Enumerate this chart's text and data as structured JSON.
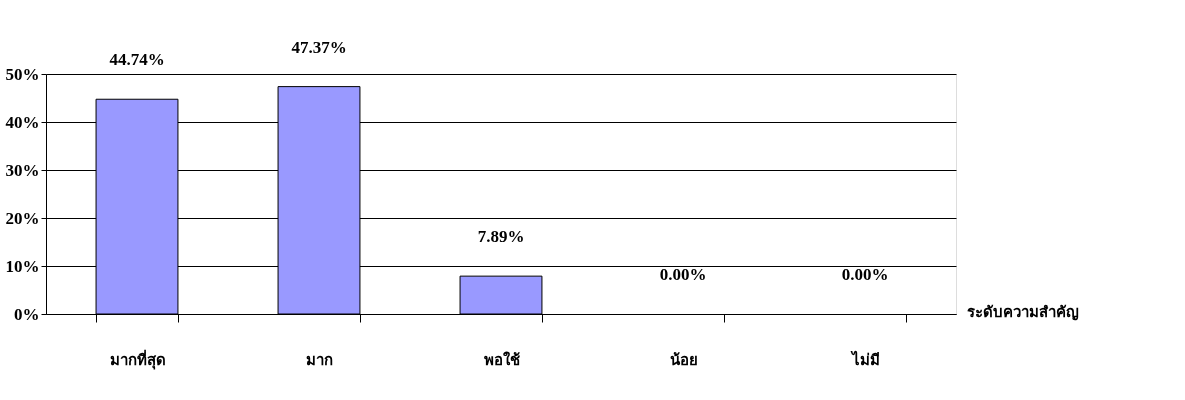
{
  "chart_data": {
    "type": "bar",
    "xlabel": "ระดับความสำคัญ",
    "categories": [
      "มากที่สุด",
      "มาก",
      "พอใช้",
      "น้อย",
      "ไม่มี"
    ],
    "values": [
      44.74,
      47.37,
      7.89,
      0,
      0
    ],
    "value_labels": [
      "44.74%",
      "47.37%",
      "7.89%",
      "0.00%",
      "0.00%"
    ],
    "color": "#9999ff",
    "ylim": [
      0,
      50
    ],
    "yticks": [
      {
        "value": 0,
        "label": "0%"
      },
      {
        "value": 10,
        "label": "10%"
      },
      {
        "value": 20,
        "label": "20%"
      },
      {
        "value": 30,
        "label": "30%"
      },
      {
        "value": 40,
        "label": "40%"
      },
      {
        "value": 50,
        "label": "50%"
      }
    ],
    "grid": "y"
  }
}
